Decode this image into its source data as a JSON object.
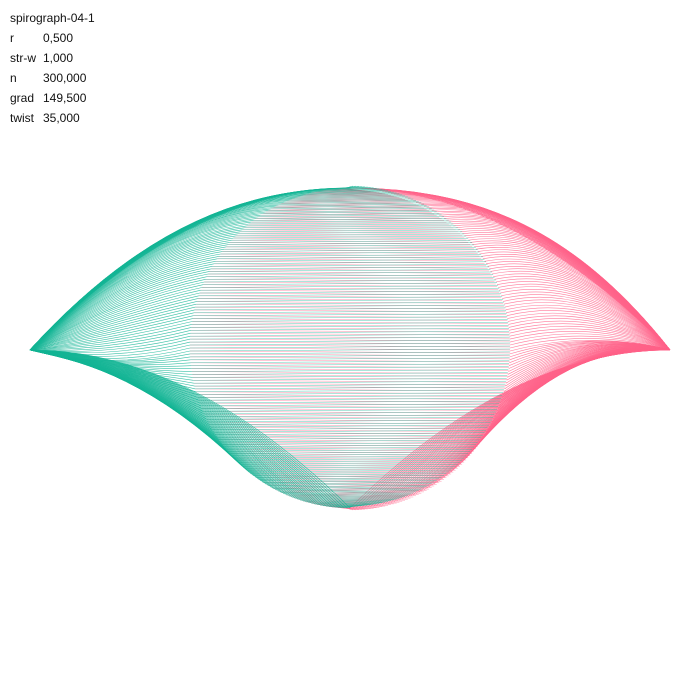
{
  "title": "spirograph-04-1",
  "params": [
    {
      "label": "r",
      "value": "0,500"
    },
    {
      "label": "str-w",
      "value": "1,000"
    },
    {
      "label": "n",
      "value": "300,000"
    },
    {
      "label": "grad",
      "value": "149,500"
    },
    {
      "label": "twist",
      "value": "35,000"
    }
  ],
  "colors": {
    "teal": "#14b595",
    "pink": "#ff6389",
    "background": "#ffffff",
    "text": "#111111"
  }
}
